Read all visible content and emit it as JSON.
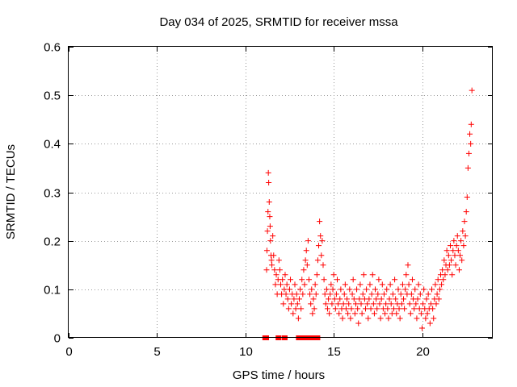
{
  "chart_data": {
    "type": "scatter",
    "title": "Day 034 of 2025, SRMTID for receiver mssa",
    "xlabel": "GPS time / hours",
    "ylabel": "SRMTID / TECUs",
    "xlim": [
      0,
      24
    ],
    "ylim": [
      0,
      0.6
    ],
    "xticks": [
      0,
      5,
      10,
      15,
      20
    ],
    "yticks": [
      0,
      0.1,
      0.2,
      0.3,
      0.4,
      0.5,
      0.6
    ],
    "xtick_labels": [
      "0",
      "5",
      "10",
      "15",
      "20"
    ],
    "ytick_labels": [
      "0",
      "0.1",
      "0.2",
      "0.3",
      "0.4",
      "0.5",
      "0.6"
    ],
    "grid": true,
    "marker": "+",
    "color": "#ff0000",
    "series": [
      {
        "name": "mssa",
        "points": [
          [
            11.1,
            0.0
          ],
          [
            11.15,
            0.0
          ],
          [
            11.2,
            0.0
          ],
          [
            11.85,
            0.0
          ],
          [
            11.9,
            0.0
          ],
          [
            12.2,
            0.0
          ],
          [
            12.25,
            0.0
          ],
          [
            13.0,
            0.0
          ],
          [
            13.1,
            0.0
          ],
          [
            13.2,
            0.0
          ],
          [
            13.35,
            0.0
          ],
          [
            13.5,
            0.0
          ],
          [
            13.65,
            0.0
          ],
          [
            13.8,
            0.0
          ],
          [
            13.95,
            0.0
          ],
          [
            14.1,
            0.0
          ],
          [
            11.2,
            0.14
          ],
          [
            11.22,
            0.18
          ],
          [
            11.25,
            0.22
          ],
          [
            11.28,
            0.26
          ],
          [
            11.3,
            0.34
          ],
          [
            11.32,
            0.32
          ],
          [
            11.35,
            0.28
          ],
          [
            11.38,
            0.25
          ],
          [
            11.4,
            0.23
          ],
          [
            11.42,
            0.2
          ],
          [
            11.45,
            0.17
          ],
          [
            11.48,
            0.16
          ],
          [
            11.5,
            0.15
          ],
          [
            11.55,
            0.21
          ],
          [
            11.6,
            0.17
          ],
          [
            11.65,
            0.14
          ],
          [
            11.7,
            0.11
          ],
          [
            11.75,
            0.13
          ],
          [
            11.8,
            0.09
          ],
          [
            11.85,
            0.12
          ],
          [
            11.9,
            0.16
          ],
          [
            11.95,
            0.14
          ],
          [
            12.0,
            0.11
          ],
          [
            12.05,
            0.09
          ],
          [
            12.1,
            0.12
          ],
          [
            12.15,
            0.07
          ],
          [
            12.2,
            0.1
          ],
          [
            12.25,
            0.13
          ],
          [
            12.3,
            0.09
          ],
          [
            12.35,
            0.11
          ],
          [
            12.4,
            0.08
          ],
          [
            12.45,
            0.06
          ],
          [
            12.5,
            0.1
          ],
          [
            12.55,
            0.12
          ],
          [
            12.6,
            0.07
          ],
          [
            12.65,
            0.09
          ],
          [
            12.7,
            0.05
          ],
          [
            12.75,
            0.08
          ],
          [
            12.8,
            0.11
          ],
          [
            12.85,
            0.06
          ],
          [
            12.9,
            0.09
          ],
          [
            12.95,
            0.07
          ],
          [
            13.0,
            0.04
          ],
          [
            13.05,
            0.08
          ],
          [
            13.1,
            0.1
          ],
          [
            13.15,
            0.06
          ],
          [
            13.2,
            0.12
          ],
          [
            13.25,
            0.09
          ],
          [
            13.3,
            0.14
          ],
          [
            13.35,
            0.11
          ],
          [
            13.4,
            0.16
          ],
          [
            13.45,
            0.18
          ],
          [
            13.5,
            0.15
          ],
          [
            13.55,
            0.2
          ],
          [
            13.6,
            0.12
          ],
          [
            13.65,
            0.09
          ],
          [
            13.7,
            0.07
          ],
          [
            13.75,
            0.1
          ],
          [
            13.8,
            0.05
          ],
          [
            13.85,
            0.08
          ],
          [
            13.9,
            0.06
          ],
          [
            13.95,
            0.11
          ],
          [
            14.0,
            0.09
          ],
          [
            14.05,
            0.13
          ],
          [
            14.1,
            0.16
          ],
          [
            14.15,
            0.19
          ],
          [
            14.2,
            0.24
          ],
          [
            14.25,
            0.21
          ],
          [
            14.3,
            0.17
          ],
          [
            14.35,
            0.2
          ],
          [
            14.4,
            0.15
          ],
          [
            14.45,
            0.12
          ],
          [
            14.5,
            0.09
          ],
          [
            14.55,
            0.07
          ],
          [
            14.6,
            0.1
          ],
          [
            14.65,
            0.06
          ],
          [
            14.7,
            0.08
          ],
          [
            14.75,
            0.05
          ],
          [
            14.8,
            0.09
          ],
          [
            14.85,
            0.11
          ],
          [
            14.9,
            0.07
          ],
          [
            14.95,
            0.1
          ],
          [
            15.0,
            0.13
          ],
          [
            15.05,
            0.08
          ],
          [
            15.1,
            0.06
          ],
          [
            15.15,
            0.09
          ],
          [
            15.2,
            0.12
          ],
          [
            15.25,
            0.07
          ],
          [
            15.3,
            0.05
          ],
          [
            15.35,
            0.08
          ],
          [
            15.4,
            0.1
          ],
          [
            15.45,
            0.06
          ],
          [
            15.5,
            0.04
          ],
          [
            15.55,
            0.07
          ],
          [
            15.6,
            0.09
          ],
          [
            15.65,
            0.11
          ],
          [
            15.7,
            0.06
          ],
          [
            15.75,
            0.08
          ],
          [
            15.8,
            0.05
          ],
          [
            15.85,
            0.07
          ],
          [
            15.9,
            0.1
          ],
          [
            15.95,
            0.04
          ],
          [
            16.0,
            0.06
          ],
          [
            16.05,
            0.09
          ],
          [
            16.1,
            0.12
          ],
          [
            16.15,
            0.08
          ],
          [
            16.2,
            0.05
          ],
          [
            16.25,
            0.07
          ],
          [
            16.3,
            0.1
          ],
          [
            16.35,
            0.06
          ],
          [
            16.4,
            0.03
          ],
          [
            16.45,
            0.08
          ],
          [
            16.5,
            0.11
          ],
          [
            16.55,
            0.07
          ],
          [
            16.6,
            0.05
          ],
          [
            16.65,
            0.09
          ],
          [
            16.7,
            0.13
          ],
          [
            16.75,
            0.08
          ],
          [
            16.8,
            0.06
          ],
          [
            16.85,
            0.1
          ],
          [
            16.9,
            0.07
          ],
          [
            16.95,
            0.04
          ],
          [
            17.0,
            0.08
          ],
          [
            17.05,
            0.11
          ],
          [
            17.1,
            0.06
          ],
          [
            17.15,
            0.09
          ],
          [
            17.2,
            0.13
          ],
          [
            17.25,
            0.07
          ],
          [
            17.3,
            0.05
          ],
          [
            17.35,
            0.1
          ],
          [
            17.4,
            0.08
          ],
          [
            17.45,
            0.06
          ],
          [
            17.5,
            0.09
          ],
          [
            17.55,
            0.12
          ],
          [
            17.6,
            0.07
          ],
          [
            17.65,
            0.04
          ],
          [
            17.7,
            0.08
          ],
          [
            17.75,
            0.11
          ],
          [
            17.8,
            0.06
          ],
          [
            17.85,
            0.09
          ],
          [
            17.9,
            0.05
          ],
          [
            17.95,
            0.07
          ],
          [
            18.0,
            0.1
          ],
          [
            18.05,
            0.06
          ],
          [
            18.1,
            0.04
          ],
          [
            18.15,
            0.08
          ],
          [
            18.2,
            0.11
          ],
          [
            18.25,
            0.07
          ],
          [
            18.3,
            0.05
          ],
          [
            18.35,
            0.09
          ],
          [
            18.4,
            0.06
          ],
          [
            18.45,
            0.12
          ],
          [
            18.5,
            0.08
          ],
          [
            18.55,
            0.05
          ],
          [
            18.6,
            0.07
          ],
          [
            18.65,
            0.1
          ],
          [
            18.7,
            0.06
          ],
          [
            18.75,
            0.04
          ],
          [
            18.8,
            0.09
          ],
          [
            18.85,
            0.07
          ],
          [
            18.9,
            0.11
          ],
          [
            18.95,
            0.08
          ],
          [
            19.0,
            0.06
          ],
          [
            19.05,
            0.1
          ],
          [
            19.1,
            0.13
          ],
          [
            19.15,
            0.09
          ],
          [
            19.2,
            0.15
          ],
          [
            19.25,
            0.11
          ],
          [
            19.3,
            0.07
          ],
          [
            19.35,
            0.05
          ],
          [
            19.4,
            0.09
          ],
          [
            19.45,
            0.12
          ],
          [
            19.5,
            0.08
          ],
          [
            19.55,
            0.06
          ],
          [
            19.6,
            0.1
          ],
          [
            19.65,
            0.07
          ],
          [
            19.7,
            0.04
          ],
          [
            19.75,
            0.08
          ],
          [
            19.8,
            0.11
          ],
          [
            19.85,
            0.06
          ],
          [
            19.9,
            0.09
          ],
          [
            19.95,
            0.05
          ],
          [
            20.0,
            0.02
          ],
          [
            20.05,
            0.07
          ],
          [
            20.1,
            0.1
          ],
          [
            20.15,
            0.06
          ],
          [
            20.2,
            0.04
          ],
          [
            20.25,
            0.08
          ],
          [
            20.3,
            0.05
          ],
          [
            20.35,
            0.09
          ],
          [
            20.4,
            0.06
          ],
          [
            20.45,
            0.03
          ],
          [
            20.5,
            0.07
          ],
          [
            20.55,
            0.1
          ],
          [
            20.6,
            0.06
          ],
          [
            20.65,
            0.04
          ],
          [
            20.7,
            0.08
          ],
          [
            20.75,
            0.11
          ],
          [
            20.8,
            0.07
          ],
          [
            20.85,
            0.09
          ],
          [
            20.9,
            0.12
          ],
          [
            20.95,
            0.08
          ],
          [
            21.0,
            0.1
          ],
          [
            21.05,
            0.13
          ],
          [
            21.1,
            0.11
          ],
          [
            21.15,
            0.14
          ],
          [
            21.2,
            0.12
          ],
          [
            21.25,
            0.16
          ],
          [
            21.3,
            0.13
          ],
          [
            21.35,
            0.15
          ],
          [
            21.4,
            0.18
          ],
          [
            21.45,
            0.14
          ],
          [
            21.5,
            0.17
          ],
          [
            21.55,
            0.15
          ],
          [
            21.6,
            0.19
          ],
          [
            21.65,
            0.16
          ],
          [
            21.7,
            0.13
          ],
          [
            21.75,
            0.18
          ],
          [
            21.8,
            0.2
          ],
          [
            21.85,
            0.17
          ],
          [
            21.9,
            0.15
          ],
          [
            21.95,
            0.19
          ],
          [
            22.0,
            0.21
          ],
          [
            22.05,
            0.18
          ],
          [
            22.1,
            0.14
          ],
          [
            22.15,
            0.17
          ],
          [
            22.2,
            0.2
          ],
          [
            22.25,
            0.16
          ],
          [
            22.3,
            0.22
          ],
          [
            22.35,
            0.19
          ],
          [
            22.4,
            0.24
          ],
          [
            22.45,
            0.21
          ],
          [
            22.5,
            0.26
          ],
          [
            22.55,
            0.29
          ],
          [
            22.6,
            0.35
          ],
          [
            22.65,
            0.38
          ],
          [
            22.7,
            0.42
          ],
          [
            22.75,
            0.4
          ],
          [
            22.78,
            0.44
          ],
          [
            22.82,
            0.51
          ]
        ]
      }
    ]
  }
}
